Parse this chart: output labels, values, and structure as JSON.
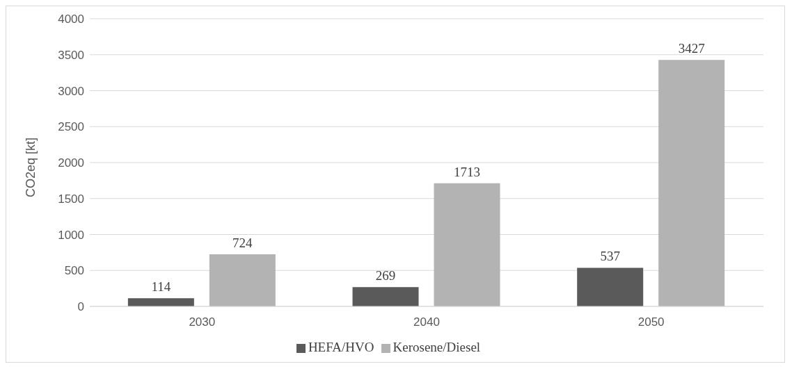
{
  "chart_data": {
    "type": "bar",
    "ylabel": "CO2eq [kt]",
    "categories": [
      "2030",
      "2040",
      "2050"
    ],
    "series": [
      {
        "name": "HEFA/HVO",
        "color": "#5a5a5a",
        "values": [
          114,
          269,
          537
        ]
      },
      {
        "name": "Kerosene/Diesel",
        "color": "#b3b3b3",
        "values": [
          724,
          1713,
          3427
        ]
      }
    ],
    "ylim": [
      0,
      4000
    ],
    "yticks": [
      0,
      500,
      1000,
      1500,
      2000,
      2500,
      3000,
      3500,
      4000
    ],
    "grid": "y",
    "legend": "bottom",
    "data_labels": true
  }
}
